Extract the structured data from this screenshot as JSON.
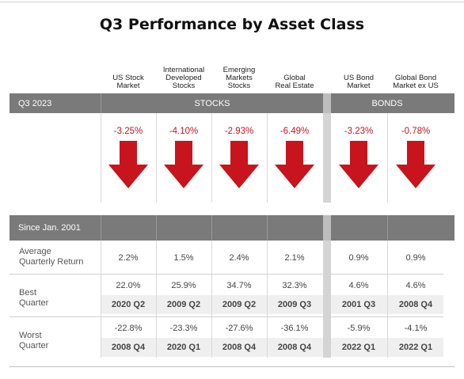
{
  "title": "Q3 Performance by Asset Class",
  "columns": [
    {
      "key": "us_stock",
      "header": "US Stock\nMarket"
    },
    {
      "key": "intl_dev",
      "header": "International\nDeveloped\nStocks"
    },
    {
      "key": "em",
      "header": "Emerging\nMarkets\nStocks"
    },
    {
      "key": "global_re",
      "header": "Global\nReal Estate"
    },
    {
      "key": "us_bond",
      "header": "US Bond\nMarket"
    },
    {
      "key": "global_bond",
      "header": "Global Bond\nMarket ex US"
    }
  ],
  "q3": {
    "period_label": "Q3 2023",
    "stocks_label": "STOCKS",
    "bonds_label": "BONDS",
    "returns": [
      "-3.25%",
      "-4.10%",
      "-2.93%",
      "-6.49%",
      "-3.23%",
      "-0.78%"
    ],
    "direction": "down",
    "arrow_color": "#c8141c"
  },
  "since": {
    "period_label": "Since Jan. 2001",
    "avg_label": "Average\nQuarterly Return",
    "avg": [
      "2.2%",
      "1.5%",
      "2.4%",
      "2.1%",
      "0.9%",
      "0.9%"
    ],
    "best_label": "Best\nQuarter",
    "best_values": [
      "22.0%",
      "25.9%",
      "34.7%",
      "32.3%",
      "4.6%",
      "4.6%"
    ],
    "best_quarters": [
      "2020 Q2",
      "2009 Q2",
      "2009 Q2",
      "2009 Q3",
      "2001 Q3",
      "2008 Q4"
    ],
    "worst_label": "Worst\nQuarter",
    "worst_values": [
      "-22.8%",
      "-23.3%",
      "-27.6%",
      "-36.1%",
      "-5.9%",
      "-4.1%"
    ],
    "worst_quarters": [
      "2008 Q4",
      "2020 Q1",
      "2008 Q4",
      "2008 Q4",
      "2022 Q1",
      "2022 Q1"
    ]
  },
  "colors": {
    "header_bar": "#7a7a7a",
    "negative": "#c8141c",
    "band": "#efefef"
  }
}
